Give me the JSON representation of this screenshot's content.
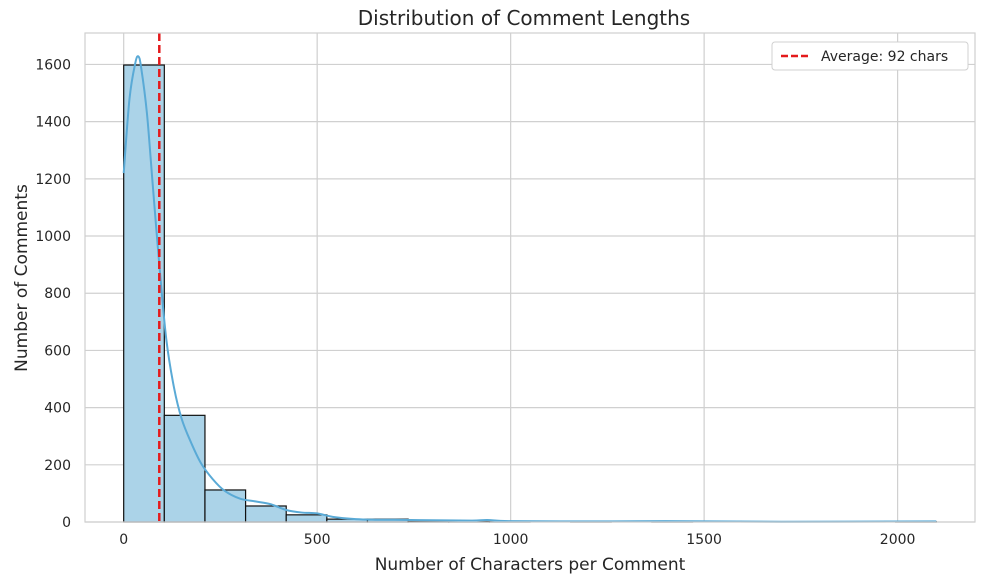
{
  "chart_data": {
    "type": "bar",
    "title": "Distribution of Comment Lengths",
    "xlabel": "Number of Characters per Comment",
    "ylabel": "Number of Comments",
    "xlim": [
      -100,
      2200
    ],
    "ylim": [
      0,
      1710
    ],
    "x_ticks": [
      0,
      500,
      1000,
      1500,
      2000
    ],
    "y_ticks": [
      0,
      200,
      400,
      600,
      800,
      1000,
      1200,
      1400,
      1600
    ],
    "grid": true,
    "legend_position": "top-right",
    "bins": [
      {
        "x0": 0,
        "x1": 105,
        "count": 1598
      },
      {
        "x0": 105,
        "x1": 210,
        "count": 373
      },
      {
        "x0": 210,
        "x1": 315,
        "count": 112
      },
      {
        "x0": 315,
        "x1": 420,
        "count": 56
      },
      {
        "x0": 420,
        "x1": 525,
        "count": 25
      },
      {
        "x0": 525,
        "x1": 630,
        "count": 10
      },
      {
        "x0": 630,
        "x1": 735,
        "count": 10
      },
      {
        "x0": 735,
        "x1": 840,
        "count": 2
      },
      {
        "x0": 840,
        "x1": 945,
        "count": 2
      },
      {
        "x0": 945,
        "x1": 1050,
        "count": 1
      },
      {
        "x0": 1050,
        "x1": 1155,
        "count": 0
      },
      {
        "x0": 1155,
        "x1": 1260,
        "count": 1
      },
      {
        "x0": 1260,
        "x1": 1365,
        "count": 0
      },
      {
        "x0": 1365,
        "x1": 1470,
        "count": 1
      },
      {
        "x0": 1470,
        "x1": 1575,
        "count": 0
      },
      {
        "x0": 1575,
        "x1": 1680,
        "count": 0
      },
      {
        "x0": 1680,
        "x1": 1785,
        "count": 0
      },
      {
        "x0": 1785,
        "x1": 1890,
        "count": 0
      },
      {
        "x0": 1890,
        "x1": 1995,
        "count": 0
      },
      {
        "x0": 1995,
        "x1": 2100,
        "count": 1
      }
    ],
    "kde": {
      "x": [
        0,
        15,
        30,
        38,
        45,
        60,
        75,
        92,
        110,
        130,
        150,
        175,
        200,
        230,
        260,
        300,
        340,
        380,
        420,
        460,
        500,
        540,
        600,
        650,
        700,
        800,
        900,
        940,
        1000,
        1200,
        1400,
        1700,
        2100
      ],
      "y": [
        1220,
        1480,
        1605,
        1628,
        1590,
        1430,
        1180,
        900,
        640,
        470,
        360,
        275,
        205,
        150,
        110,
        82,
        72,
        62,
        42,
        33,
        30,
        18,
        10,
        8,
        8,
        6,
        5,
        7,
        3,
        2,
        3,
        1,
        2
      ]
    },
    "average_line": {
      "x": 92,
      "label": "Average: 92 chars",
      "color": "#e41a1c"
    },
    "colors": {
      "bar_fill": "#abd3e8",
      "bar_edge": "#111111",
      "kde": "#5aaad6",
      "grid": "#d0d0d0",
      "spine": "#cfcfcf"
    }
  }
}
